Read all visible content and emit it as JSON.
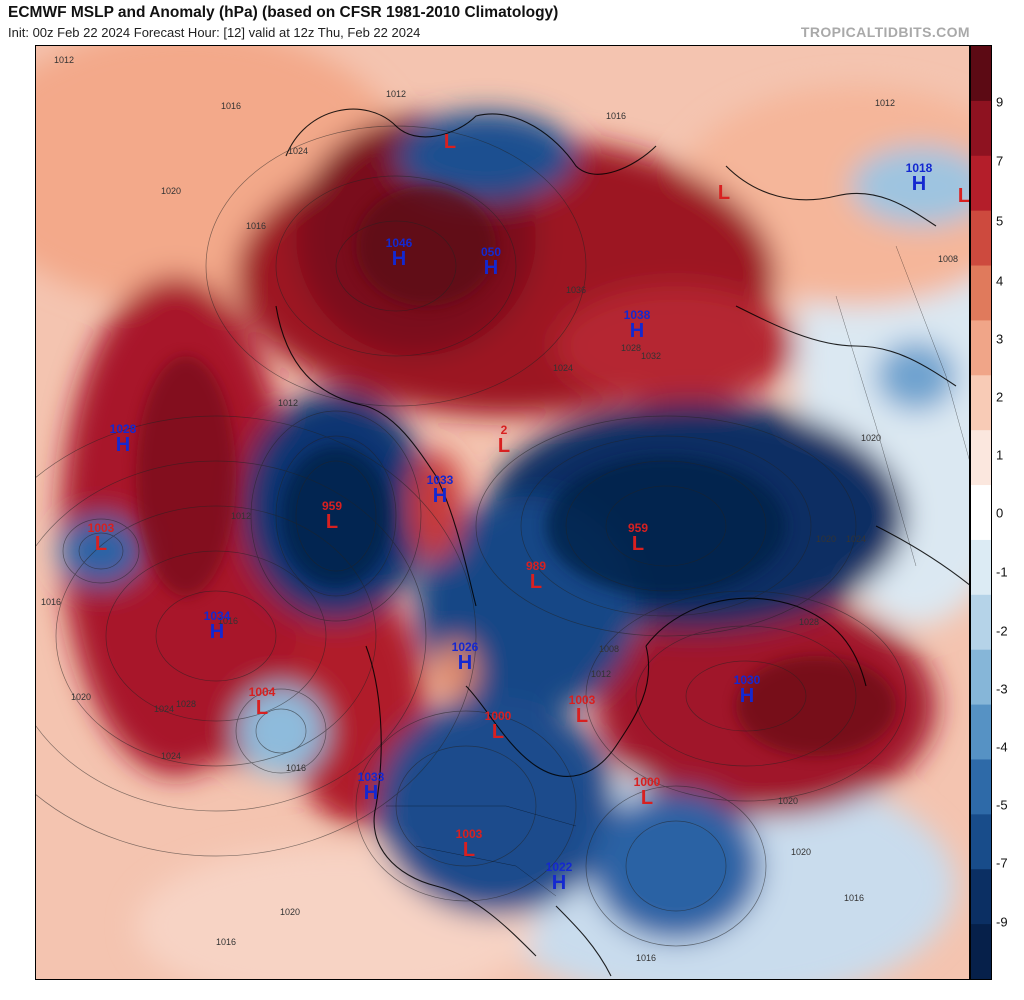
{
  "header": {
    "title": "ECMWF MSLP and Anomaly (hPa) (based on CFSR 1981-2010 Climatology)",
    "subtitle": "Init: 00z Feb 22 2024   Forecast Hour: [12]   valid at 12z Thu, Feb 22 2024",
    "brand": "TROPICALTIDBITS.COM"
  },
  "colorbar": {
    "labels": [
      "9",
      "7",
      "5",
      "4",
      "3",
      "2",
      "1",
      "0",
      "-1",
      "-2",
      "-3",
      "-4",
      "-5",
      "-7",
      "-9"
    ],
    "colors": [
      "#5c0a14",
      "#8e1220",
      "#b41e2a",
      "#cd4a3e",
      "#e07a5c",
      "#f0a588",
      "#f8cbb6",
      "#fbe7de",
      "#ffffff",
      "#dcebf4",
      "#b5d3e8",
      "#86b6d8",
      "#5692c4",
      "#2e6aa8",
      "#184c8a",
      "#0b2f63",
      "#06204a"
    ]
  },
  "pressure_systems": [
    {
      "type": "L",
      "value": ""
    },
    {
      "type": "H",
      "value": "1046"
    },
    {
      "type": "H",
      "value": "050"
    },
    {
      "type": "L",
      "value": ""
    },
    {
      "type": "H",
      "value": "1018"
    },
    {
      "type": "L",
      "value": ""
    },
    {
      "type": "H",
      "value": "1038"
    },
    {
      "type": "H",
      "value": "1028"
    },
    {
      "type": "L",
      "value": "2"
    },
    {
      "type": "H",
      "value": "1033"
    },
    {
      "type": "L",
      "value": "959"
    },
    {
      "type": "L",
      "value": "1003"
    },
    {
      "type": "L",
      "value": "959"
    },
    {
      "type": "L",
      "value": "989"
    },
    {
      "type": "H",
      "value": "1034"
    },
    {
      "type": "H",
      "value": "1026"
    },
    {
      "type": "L",
      "value": "1004"
    },
    {
      "type": "L",
      "value": "1000"
    },
    {
      "type": "L",
      "value": "1003"
    },
    {
      "type": "H",
      "value": "1033"
    },
    {
      "type": "H",
      "value": "1030"
    },
    {
      "type": "L",
      "value": "1000"
    },
    {
      "type": "L",
      "value": "1003"
    },
    {
      "type": "H",
      "value": "1022"
    }
  ],
  "isobar_labels": [
    "1012",
    "1016",
    "1012",
    "1020",
    "1024",
    "1016",
    "1008",
    "1020",
    "1012",
    "1016",
    "1020",
    "1024",
    "1028",
    "1012",
    "1020",
    "1016",
    "1016",
    "1028",
    "1024",
    "1016",
    "1020",
    "1036",
    "1032",
    "1028",
    "1024",
    "1012",
    "1016",
    "1020",
    "1016",
    "1012",
    "1024",
    "1016",
    "1020",
    "1008"
  ]
}
